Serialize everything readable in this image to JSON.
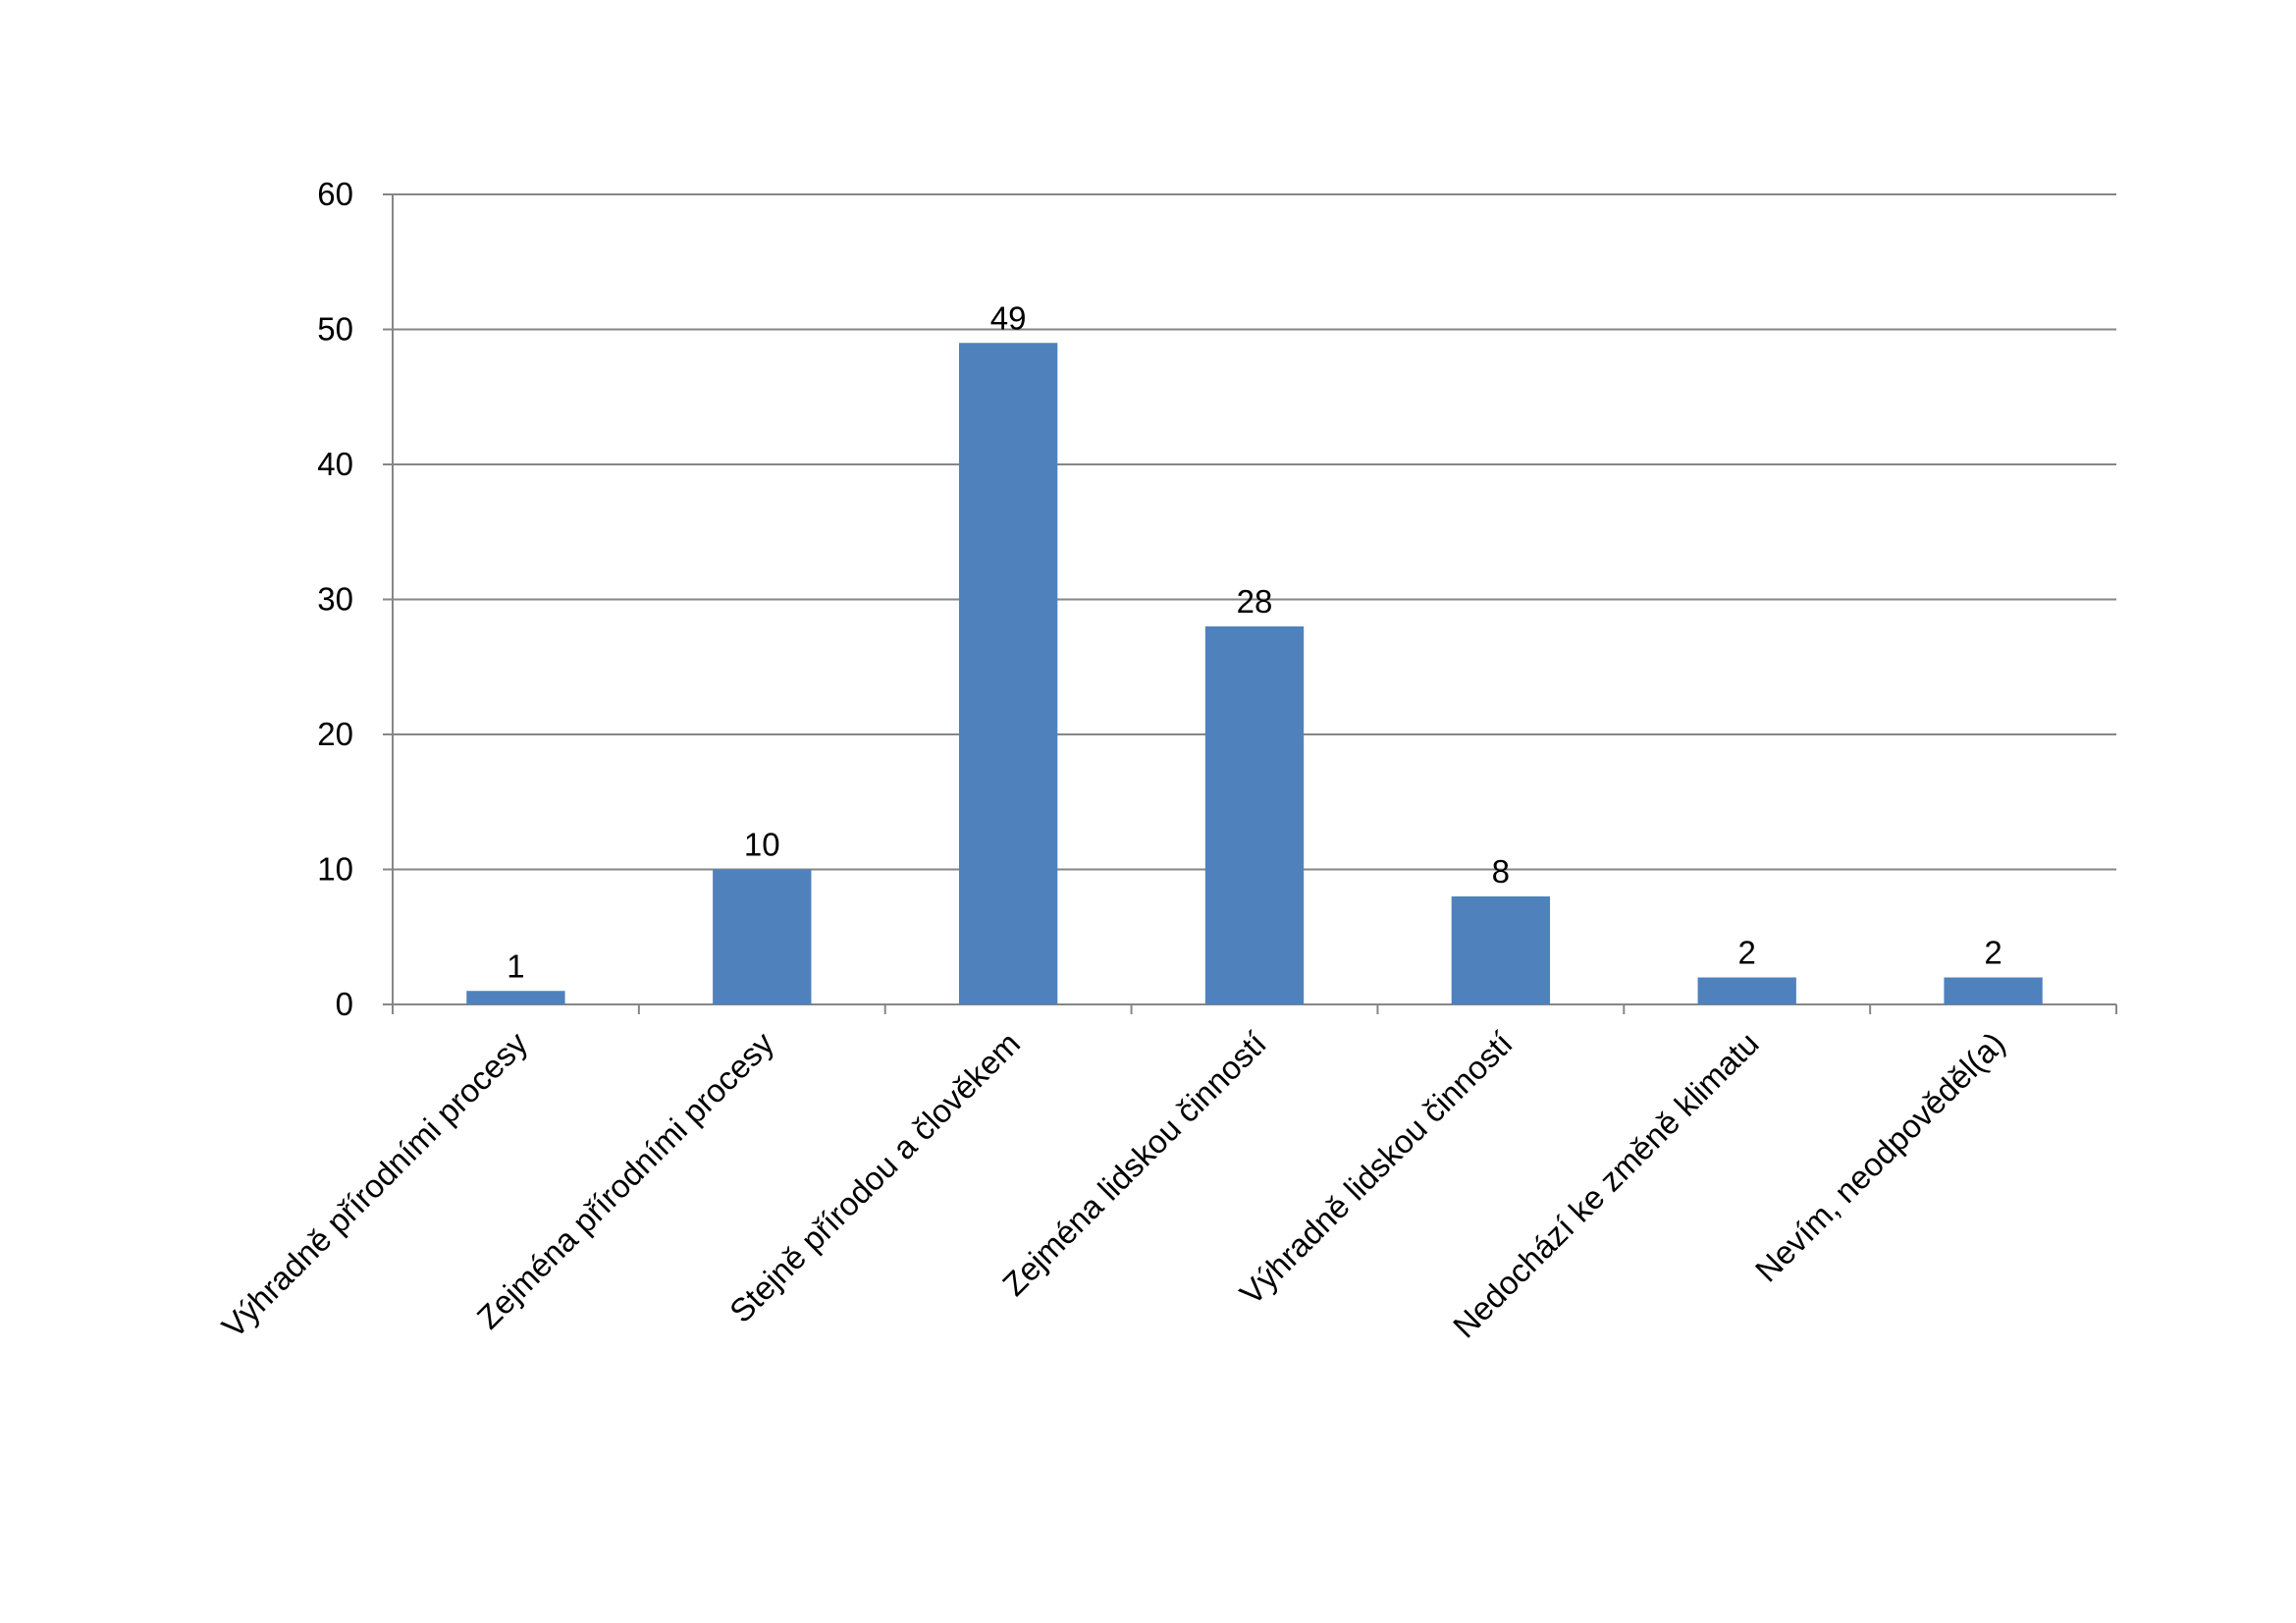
{
  "chart_data": {
    "type": "bar",
    "categories": [
      "Výhradně přírodními procesy",
      "Zejména přírodními procesy",
      "Stejně přírodou a člověkem",
      "Zejména lidskou činností",
      "Výhradně lidskou činností",
      "Nedochází ke změně klimatu",
      "Nevím, neodpověděl(a)"
    ],
    "values": [
      1,
      10,
      49,
      28,
      8,
      2,
      2
    ],
    "color": "#4f81bd",
    "ylim": [
      0,
      60
    ],
    "yticks": [
      0,
      10,
      20,
      30,
      40,
      50,
      60
    ],
    "grid": true
  }
}
